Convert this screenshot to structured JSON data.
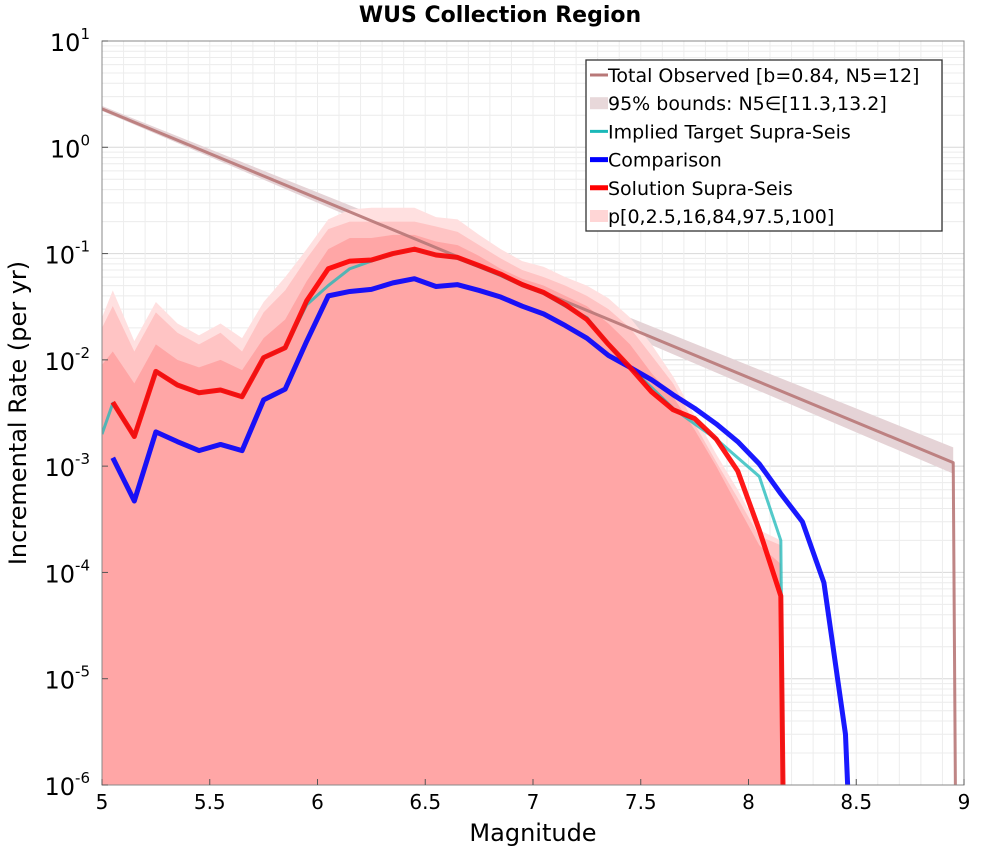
{
  "chart_data": {
    "type": "line",
    "title": "WUS Collection Region",
    "xlabel": "Magnitude",
    "ylabel": "Incremental Rate (per yr)",
    "xlim": [
      5,
      9
    ],
    "ylim_log10": [
      -6,
      1
    ],
    "y_scale": "log",
    "xticks": [
      "5",
      "5.5",
      "6",
      "6.5",
      "7",
      "7.5",
      "8",
      "8.5",
      "9"
    ],
    "xtick_values": [
      5,
      5.5,
      6,
      6.5,
      7,
      7.5,
      8,
      8.5,
      9
    ],
    "yticks": [
      {
        "base": "10",
        "exp": "1",
        "value": 1
      },
      {
        "base": "10",
        "exp": "0",
        "value": 0
      },
      {
        "base": "10",
        "exp": "-1",
        "value": -1
      },
      {
        "base": "10",
        "exp": "-2",
        "value": -2
      },
      {
        "base": "10",
        "exp": "-3",
        "value": -3
      },
      {
        "base": "10",
        "exp": "-4",
        "value": -4
      },
      {
        "base": "10",
        "exp": "-5",
        "value": -5
      },
      {
        "base": "10",
        "exp": "-6",
        "value": -6
      }
    ],
    "grid": true,
    "legend_position": "top-right",
    "legend": [
      {
        "label": "Total Observed [b=0.84, N5=12]",
        "kind": "line",
        "color": "#b87878",
        "width": 3
      },
      {
        "label": "95% bounds: N5∈[11.3,13.2]",
        "kind": "band",
        "color": "#e8d8da"
      },
      {
        "label": "Implied Target Supra-Seis",
        "kind": "line",
        "color": "#1ab8b8",
        "width": 3
      },
      {
        "label": "Comparison",
        "kind": "line",
        "color": "#0000ff",
        "width": 5
      },
      {
        "label": "Solution Supra-Seis",
        "kind": "line",
        "color": "#ff0000",
        "width": 5
      },
      {
        "label": "p[0,2.5,16,84,97.5,100]",
        "kind": "band",
        "color": "#ffd6d6"
      }
    ],
    "bands": [
      {
        "name": "observed-95",
        "color": "#e5d3d6",
        "x": [
          5.0,
          8.95
        ],
        "lower": [
          2.2,
          0.00085
        ],
        "upper": [
          2.45,
          0.0015
        ]
      },
      {
        "name": "p0-100",
        "color": "#ffe0e0",
        "x": [
          5.0,
          5.05,
          5.15,
          5.25,
          5.35,
          5.45,
          5.55,
          5.65,
          5.75,
          5.85,
          5.95,
          6.05,
          6.15,
          6.25,
          6.35,
          6.45,
          6.55,
          6.65,
          6.75,
          6.85,
          6.95,
          7.05,
          7.15,
          7.25,
          7.35,
          7.45,
          7.55,
          7.65,
          7.75,
          7.85,
          7.95,
          8.05,
          8.15
        ],
        "lower": [
          1e-06,
          1e-06,
          1e-06,
          1e-06,
          1e-06,
          1e-06,
          1e-06,
          1e-06,
          1e-06,
          1e-06,
          1e-06,
          1e-06,
          1e-06,
          1e-06,
          1e-06,
          1e-06,
          1e-06,
          1e-06,
          1e-06,
          1e-06,
          1e-06,
          1e-06,
          1e-06,
          1e-06,
          1e-06,
          1e-06,
          1e-06,
          1e-06,
          1e-06,
          1e-06,
          1e-06,
          1e-06,
          1e-06
        ],
        "upper": [
          0.025,
          0.045,
          0.015,
          0.035,
          0.022,
          0.017,
          0.022,
          0.016,
          0.035,
          0.06,
          0.11,
          0.21,
          0.26,
          0.27,
          0.27,
          0.27,
          0.22,
          0.21,
          0.15,
          0.11,
          0.085,
          0.075,
          0.06,
          0.05,
          0.038,
          0.025,
          0.014,
          0.007,
          0.003,
          0.0013,
          0.0006,
          0.00025,
          0.0002
        ]
      },
      {
        "name": "p2.5-97.5",
        "color": "#ffc4c4",
        "x": [
          5.0,
          5.05,
          5.15,
          5.25,
          5.35,
          5.45,
          5.55,
          5.65,
          5.75,
          5.85,
          5.95,
          6.05,
          6.15,
          6.25,
          6.35,
          6.45,
          6.55,
          6.65,
          6.75,
          6.85,
          6.95,
          7.05,
          7.15,
          7.25,
          7.35,
          7.45,
          7.55,
          7.65,
          7.75,
          7.85,
          7.95,
          8.05,
          8.15
        ],
        "lower": [
          1e-06,
          1e-06,
          1e-06,
          1e-06,
          1e-06,
          1e-06,
          1e-06,
          1e-06,
          1e-06,
          1e-06,
          1e-06,
          1e-06,
          1e-06,
          1e-06,
          1e-06,
          1e-06,
          1e-06,
          1e-06,
          1e-06,
          1e-06,
          1e-06,
          1e-06,
          1e-06,
          1e-06,
          1e-06,
          1e-06,
          1e-06,
          1e-06,
          1e-06,
          1e-06,
          1e-06,
          1e-06,
          1e-06
        ],
        "upper": [
          0.02,
          0.032,
          0.012,
          0.028,
          0.018,
          0.014,
          0.018,
          0.012,
          0.028,
          0.045,
          0.09,
          0.17,
          0.2,
          0.2,
          0.2,
          0.2,
          0.18,
          0.16,
          0.12,
          0.09,
          0.07,
          0.06,
          0.05,
          0.04,
          0.03,
          0.02,
          0.011,
          0.006,
          0.0025,
          0.0011,
          0.0005,
          0.00022,
          0.00018
        ]
      },
      {
        "name": "p16-84",
        "color": "#ffa6a6",
        "x": [
          5.0,
          5.05,
          5.15,
          5.25,
          5.35,
          5.45,
          5.55,
          5.65,
          5.75,
          5.85,
          5.95,
          6.05,
          6.15,
          6.25,
          6.35,
          6.45,
          6.55,
          6.65,
          6.75,
          6.85,
          6.95,
          7.05,
          7.15,
          7.25,
          7.35,
          7.45,
          7.55,
          7.65,
          7.75,
          7.85,
          7.95,
          8.05,
          8.15
        ],
        "lower": [
          1e-06,
          1e-06,
          1e-06,
          1e-06,
          1e-06,
          1e-06,
          1e-06,
          1e-06,
          1e-06,
          1e-06,
          1e-06,
          1e-06,
          1e-06,
          1e-06,
          1e-06,
          1e-06,
          1e-06,
          1e-06,
          1e-06,
          1e-06,
          1e-06,
          1e-06,
          1e-06,
          1e-06,
          1e-06,
          1e-06,
          1e-06,
          1e-06,
          1e-06,
          1e-06,
          1e-06,
          1e-06,
          1e-06
        ],
        "upper": [
          0.009,
          0.012,
          0.006,
          0.014,
          0.01,
          0.0085,
          0.01,
          0.008,
          0.016,
          0.024,
          0.055,
          0.11,
          0.14,
          0.14,
          0.15,
          0.15,
          0.13,
          0.12,
          0.095,
          0.072,
          0.058,
          0.05,
          0.04,
          0.032,
          0.022,
          0.014,
          0.0075,
          0.0045,
          0.0022,
          0.001,
          0.00042,
          0.00018,
          0.00012
        ]
      }
    ],
    "series": [
      {
        "name": "Total Observed [b=0.84, N5=12]",
        "color": "#b87878",
        "width": 3,
        "x": [
          5.0,
          8.95,
          8.96
        ],
        "y": [
          2.3,
          0.00108,
          1e-06
        ]
      },
      {
        "name": "Implied Target Supra-Seis",
        "color": "#1ab8b8",
        "width": 3,
        "x": [
          5.0,
          5.05,
          5.15,
          5.25,
          5.35,
          5.45,
          5.55,
          5.65,
          5.75,
          5.85,
          5.95,
          6.05,
          6.15,
          6.25,
          6.35,
          6.45,
          6.55,
          6.65,
          6.75,
          6.85,
          6.95,
          7.05,
          7.15,
          7.25,
          7.35,
          7.45,
          7.55,
          7.65,
          7.75,
          7.85,
          7.95,
          8.05,
          8.15,
          8.16
        ],
        "y": [
          0.002,
          0.0039,
          0.0019,
          0.0078,
          0.0058,
          0.0049,
          0.0052,
          0.0045,
          0.0105,
          0.013,
          0.033,
          0.05,
          0.072,
          0.085,
          0.1,
          0.11,
          0.097,
          0.09,
          0.075,
          0.062,
          0.05,
          0.042,
          0.032,
          0.025,
          0.014,
          0.0085,
          0.0055,
          0.0035,
          0.0025,
          0.0018,
          0.0012,
          0.0008,
          0.0002,
          1e-06
        ]
      },
      {
        "name": "Comparison",
        "color": "#0000ff",
        "width": 5,
        "x": [
          5.05,
          5.15,
          5.25,
          5.35,
          5.45,
          5.55,
          5.65,
          5.75,
          5.85,
          5.95,
          6.05,
          6.15,
          6.25,
          6.35,
          6.45,
          6.55,
          6.65,
          6.75,
          6.85,
          6.95,
          7.05,
          7.15,
          7.25,
          7.35,
          7.45,
          7.55,
          7.65,
          7.75,
          7.85,
          7.95,
          8.05,
          8.15,
          8.25,
          8.35,
          8.45,
          8.46
        ],
        "y": [
          0.0012,
          0.00047,
          0.0021,
          0.0017,
          0.0014,
          0.0016,
          0.0014,
          0.0042,
          0.0053,
          0.015,
          0.04,
          0.044,
          0.046,
          0.053,
          0.058,
          0.049,
          0.051,
          0.045,
          0.039,
          0.032,
          0.027,
          0.021,
          0.016,
          0.011,
          0.0085,
          0.0065,
          0.0047,
          0.0035,
          0.0025,
          0.0017,
          0.00105,
          0.00055,
          0.0003,
          8e-05,
          3e-06,
          1e-06
        ]
      },
      {
        "name": "Solution Supra-Seis",
        "color": "#ff0000",
        "width": 5,
        "x": [
          5.05,
          5.15,
          5.25,
          5.35,
          5.45,
          5.55,
          5.65,
          5.75,
          5.85,
          5.95,
          6.05,
          6.15,
          6.25,
          6.35,
          6.45,
          6.55,
          6.65,
          6.75,
          6.85,
          6.95,
          7.05,
          7.15,
          7.25,
          7.35,
          7.45,
          7.55,
          7.65,
          7.75,
          7.85,
          7.95,
          8.05,
          8.15,
          8.16
        ],
        "y": [
          0.004,
          0.0019,
          0.0078,
          0.0058,
          0.0049,
          0.0052,
          0.0045,
          0.0105,
          0.013,
          0.036,
          0.072,
          0.085,
          0.087,
          0.1,
          0.11,
          0.097,
          0.092,
          0.077,
          0.064,
          0.051,
          0.043,
          0.033,
          0.024,
          0.014,
          0.0085,
          0.005,
          0.0034,
          0.0028,
          0.0018,
          0.0009,
          0.00025,
          6e-05,
          1e-06
        ]
      }
    ]
  }
}
